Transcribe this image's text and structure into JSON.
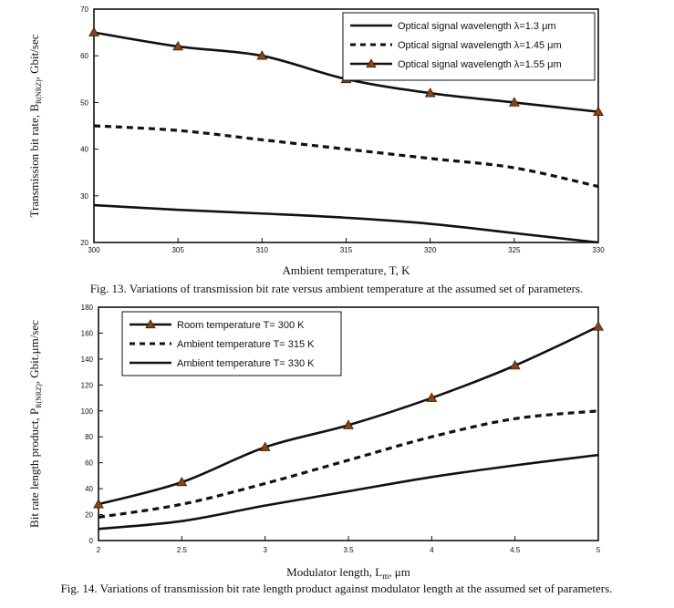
{
  "chart_data": [
    {
      "type": "line",
      "title": "",
      "caption": "Fig. 13. Variations of transmission bit rate versus ambient temperature at the assumed set of parameters.",
      "xlabel": "Ambient temperature, T, K",
      "ylabel": "Transmission bit rate, B",
      "ylabel_sub": "R(NRZ)",
      "ylabel_tail": ", Gbit/sec",
      "xlim": [
        300,
        330
      ],
      "ylim": [
        20,
        70
      ],
      "xticks": [
        "300",
        "305",
        "310",
        "315",
        "320",
        "325",
        "330"
      ],
      "yticks": [
        "20",
        "30",
        "40",
        "50",
        "60",
        "70"
      ],
      "legend_position": "top-right",
      "grid": false,
      "series": [
        {
          "name": "Optical signal wavelength λ=1.3 μm",
          "style": "solid",
          "marker": false,
          "x": [
            300,
            305,
            310,
            315,
            320,
            325,
            330
          ],
          "y": [
            28,
            27,
            26.2,
            25.3,
            24,
            22,
            20
          ]
        },
        {
          "name": "Optical signal wavelength λ=1.45 μm",
          "style": "dashed",
          "marker": false,
          "x": [
            300,
            305,
            310,
            315,
            320,
            325,
            330
          ],
          "y": [
            45,
            44,
            42,
            40,
            38,
            36,
            32
          ]
        },
        {
          "name": "Optical signal wavelength λ=1.55 μm",
          "style": "solid",
          "marker": true,
          "x": [
            300,
            305,
            310,
            315,
            320,
            325,
            330
          ],
          "y": [
            65,
            62,
            60,
            55,
            52,
            50,
            48
          ]
        }
      ]
    },
    {
      "type": "line",
      "title": "",
      "caption": "Fig. 14. Variations of  transmission bit rate length product against modulator length at the assumed set of parameters.",
      "xlabel": "Modulator length, L",
      "xlabel_sub": "m",
      "xlabel_tail": ", μm",
      "ylabel": "Bit rate length product, P",
      "ylabel_sub": "R(NRZ)",
      "ylabel_tail": ", Gbit.μm/sec",
      "xlim": [
        2,
        5
      ],
      "ylim": [
        0,
        180
      ],
      "xticks": [
        "2",
        "2.5",
        "3",
        "3.5",
        "4",
        "4.5",
        "5"
      ],
      "yticks": [
        "0",
        "20",
        "40",
        "60",
        "80",
        "100",
        "120",
        "140",
        "160",
        "180"
      ],
      "legend_position": "top-left",
      "grid": false,
      "series": [
        {
          "name": "Room temperature T= 300 K",
          "style": "solid",
          "marker": true,
          "x": [
            2,
            2.5,
            3,
            3.5,
            4,
            4.5,
            5
          ],
          "y": [
            28,
            45,
            72,
            89,
            110,
            135,
            165
          ]
        },
        {
          "name": "Ambient temperature T= 315 K",
          "style": "dashed",
          "marker": false,
          "x": [
            2,
            2.5,
            3,
            3.5,
            4,
            4.5,
            5
          ],
          "y": [
            18,
            28,
            44,
            62,
            80,
            94,
            100
          ]
        },
        {
          "name": "Ambient temperature T= 330 K",
          "style": "solid",
          "marker": false,
          "x": [
            2,
            2.5,
            3,
            3.5,
            4,
            4.5,
            5
          ],
          "y": [
            9,
            15,
            27,
            38,
            49,
            58,
            66
          ]
        }
      ]
    }
  ],
  "colors": {
    "line": "#111111",
    "marker_fill": "#8b4513",
    "marker_stroke": "#3a1a05"
  }
}
